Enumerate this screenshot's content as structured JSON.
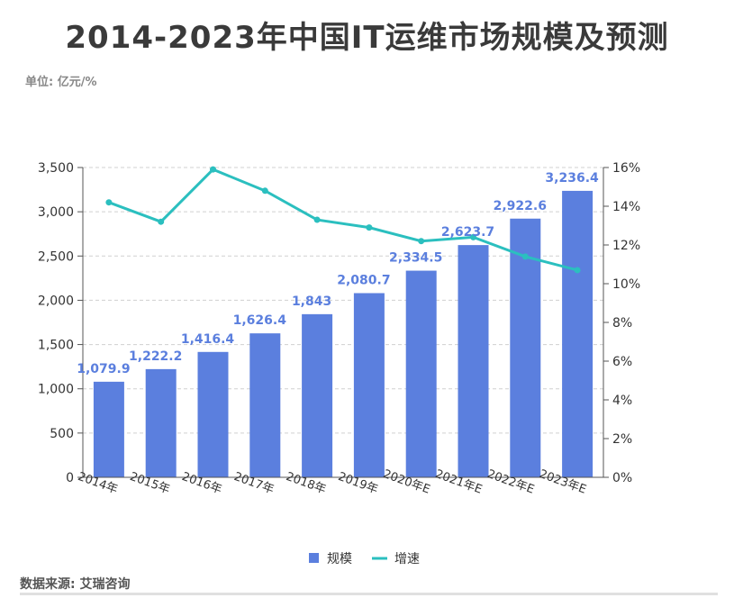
{
  "chart_data": {
    "type": "bar",
    "title": "2014-2023年中国IT运维市场规模及预测",
    "subtitle": "单位: 亿元/%",
    "source": "数据来源: 艾瑞咨询",
    "categories": [
      "2014年",
      "2015年",
      "2016年",
      "2017年",
      "2018年",
      "2019年",
      "2020年E",
      "2021年E",
      "2022年E",
      "2023年E"
    ],
    "series": [
      {
        "name": "规模",
        "type": "bar",
        "axis": "left",
        "color": "#5b7fde",
        "values": [
          1079.9,
          1222.2,
          1416.4,
          1626.4,
          1843,
          2080.7,
          2334.5,
          2623.7,
          2922.6,
          3236.4
        ],
        "labels": [
          "1,079.9",
          "1,222.2",
          "1,416.4",
          "1,626.4",
          "1,843",
          "2,080.7",
          "2,334.5",
          "2,623.7",
          "2,922.6",
          "3,236.4"
        ]
      },
      {
        "name": "增速",
        "type": "line",
        "axis": "right",
        "color": "#2bbfbf",
        "values": [
          14.2,
          13.2,
          15.9,
          14.8,
          13.3,
          12.9,
          12.2,
          12.4,
          11.4,
          10.7
        ]
      }
    ],
    "y_left": {
      "min": 0,
      "max": 3500,
      "ticks": [
        "0",
        "500",
        "1,000",
        "1,500",
        "2,000",
        "2,500",
        "3,000",
        "3,500"
      ]
    },
    "y_right": {
      "min": 0,
      "max": 16,
      "ticks": [
        "0%",
        "2%",
        "4%",
        "6%",
        "8%",
        "10%",
        "12%",
        "14%",
        "16%"
      ]
    },
    "grid": true,
    "legend_position": "bottom"
  }
}
